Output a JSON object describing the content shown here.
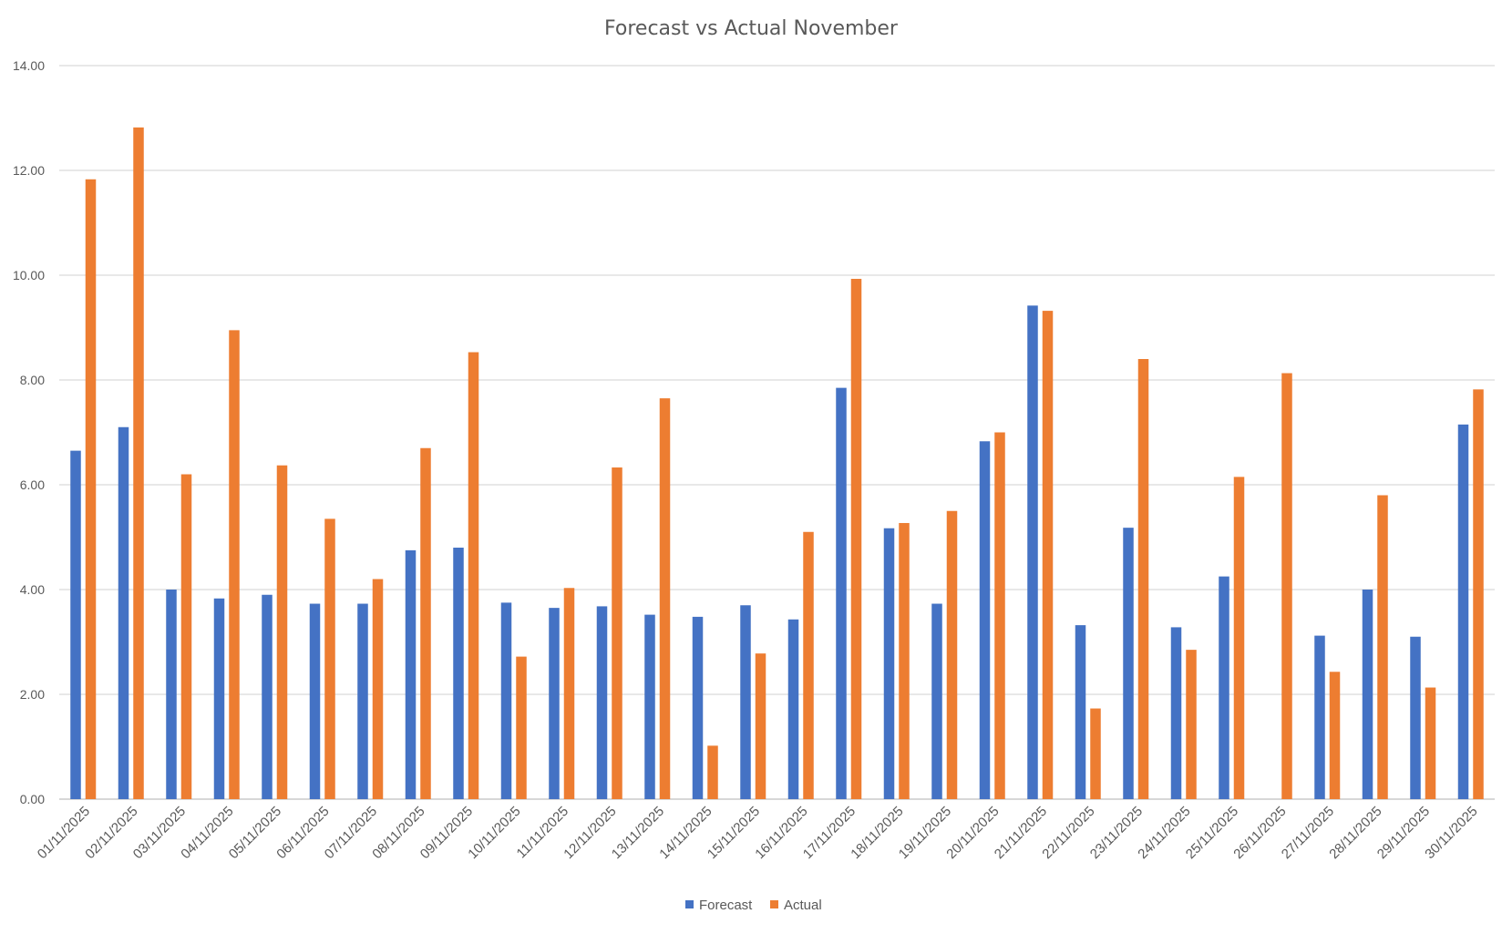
{
  "chart_data": {
    "type": "bar",
    "title": "Forecast vs Actual November",
    "xlabel": "",
    "ylabel": "",
    "ylim": [
      0,
      14
    ],
    "y_ticks": [
      "0.00",
      "2.00",
      "4.00",
      "6.00",
      "8.00",
      "10.00",
      "12.00",
      "14.00"
    ],
    "grid": true,
    "legend_position": "bottom",
    "categories": [
      "01/11/2025",
      "02/11/2025",
      "03/11/2025",
      "04/11/2025",
      "05/11/2025",
      "06/11/2025",
      "07/11/2025",
      "08/11/2025",
      "09/11/2025",
      "10/11/2025",
      "11/11/2025",
      "12/11/2025",
      "13/11/2025",
      "14/11/2025",
      "15/11/2025",
      "16/11/2025",
      "17/11/2025",
      "18/11/2025",
      "19/11/2025",
      "20/11/2025",
      "21/11/2025",
      "22/11/2025",
      "23/11/2025",
      "24/11/2025",
      "25/11/2025",
      "26/11/2025",
      "27/11/2025",
      "28/11/2025",
      "29/11/2025",
      "30/11/2025"
    ],
    "series": [
      {
        "name": "Forecast",
        "color": "#4472c4",
        "values": [
          6.65,
          7.1,
          4.0,
          3.83,
          3.9,
          3.73,
          3.73,
          4.75,
          4.8,
          3.75,
          3.65,
          3.68,
          3.52,
          3.48,
          3.7,
          3.43,
          7.85,
          5.17,
          3.73,
          6.83,
          9.42,
          3.32,
          5.18,
          3.28,
          4.25,
          0,
          3.12,
          4.0,
          3.1,
          7.15
        ]
      },
      {
        "name": "Actual",
        "color": "#ed7d31",
        "values": [
          11.83,
          12.82,
          6.2,
          8.95,
          6.37,
          5.35,
          4.2,
          6.7,
          8.53,
          2.72,
          4.03,
          6.33,
          7.65,
          1.02,
          2.78,
          5.1,
          9.93,
          5.27,
          5.5,
          7.0,
          9.32,
          1.73,
          8.4,
          2.85,
          6.15,
          8.13,
          2.43,
          5.8,
          2.13,
          7.82
        ]
      }
    ]
  }
}
